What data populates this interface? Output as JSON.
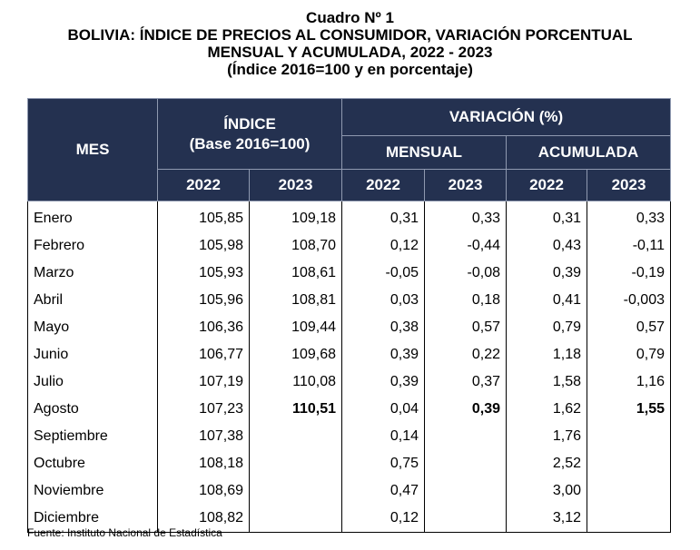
{
  "title": {
    "line1": "Cuadro Nº 1",
    "line2": "BOLIVIA: ÍNDICE DE PRECIOS AL CONSUMIDOR, VARIACIÓN PORCENTUAL",
    "line3": "MENSUAL Y ACUMULADA, 2022 - 2023",
    "line4": "(Índice 2016=100 y en porcentaje)"
  },
  "header": {
    "mes": "MES",
    "indice_line1": "ÍNDICE",
    "indice_line2": "(Base 2016=100)",
    "variacion": "VARIACIÓN (%)",
    "mensual": "MENSUAL",
    "acumulada": "ACUMULADA",
    "years": [
      "2022",
      "2023",
      "2022",
      "2023",
      "2022",
      "2023"
    ]
  },
  "rows": [
    {
      "mes": "Enero",
      "i22": "105,85",
      "i23": "109,18",
      "m22": "0,31",
      "m23": "0,33",
      "a22": "0,31",
      "a23": "0,33"
    },
    {
      "mes": "Febrero",
      "i22": "105,98",
      "i23": "108,70",
      "m22": "0,12",
      "m23": "-0,44",
      "a22": "0,43",
      "a23": "-0,11"
    },
    {
      "mes": "Marzo",
      "i22": "105,93",
      "i23": "108,61",
      "m22": "-0,05",
      "m23": "-0,08",
      "a22": "0,39",
      "a23": "-0,19"
    },
    {
      "mes": "Abril",
      "i22": "105,96",
      "i23": "108,81",
      "m22": "0,03",
      "m23": "0,18",
      "a22": "0,41",
      "a23": "-0,003"
    },
    {
      "mes": "Mayo",
      "i22": "106,36",
      "i23": "109,44",
      "m22": "0,38",
      "m23": "0,57",
      "a22": "0,79",
      "a23": "0,57"
    },
    {
      "mes": "Junio",
      "i22": "106,77",
      "i23": "109,68",
      "m22": "0,39",
      "m23": "0,22",
      "a22": "1,18",
      "a23": "0,79"
    },
    {
      "mes": "Julio",
      "i22": "107,19",
      "i23": "110,08",
      "m22": "0,39",
      "m23": "0,37",
      "a22": "1,58",
      "a23": "1,16"
    },
    {
      "mes": "Agosto",
      "i22": "107,23",
      "i23": "110,51",
      "m22": "0,04",
      "m23": "0,39",
      "a22": "1,62",
      "a23": "1,55"
    },
    {
      "mes": "Septiembre",
      "i22": "107,38",
      "i23": "",
      "m22": "0,14",
      "m23": "",
      "a22": "1,76",
      "a23": ""
    },
    {
      "mes": "Octubre",
      "i22": "108,18",
      "i23": "",
      "m22": "0,75",
      "m23": "",
      "a22": "2,52",
      "a23": ""
    },
    {
      "mes": "Noviembre",
      "i22": "108,69",
      "i23": "",
      "m22": "0,47",
      "m23": "",
      "a22": "3,00",
      "a23": ""
    },
    {
      "mes": "Diciembre",
      "i22": "108,82",
      "i23": "",
      "m22": "0,12",
      "m23": "",
      "a22": "3,12",
      "a23": ""
    }
  ],
  "fuente": "Fuente: Instituto Nacional de Estadística",
  "colors": {
    "header_bg": "#243150",
    "header_text": "#ffffff"
  }
}
